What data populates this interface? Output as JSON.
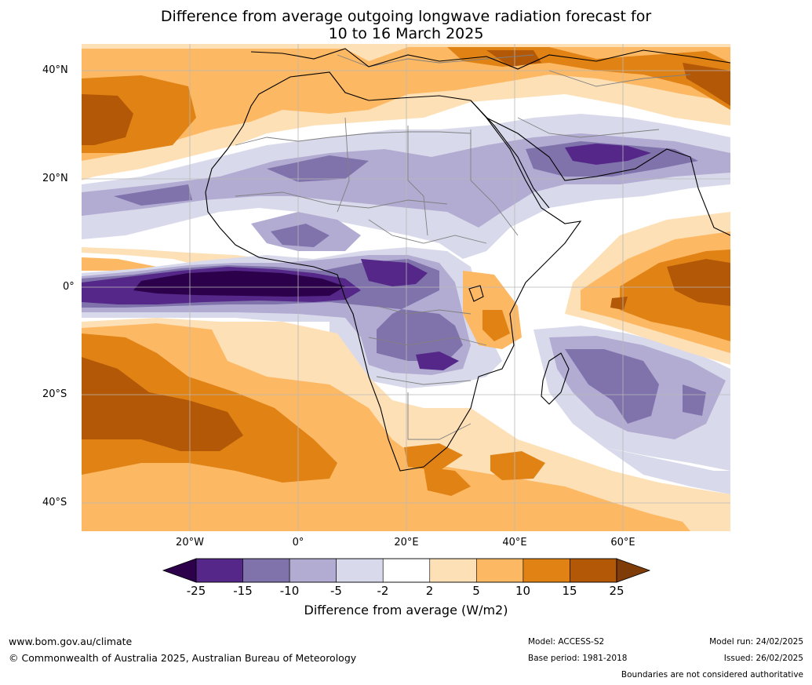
{
  "title": {
    "line1": "Difference from average outgoing longwave radiation forecast for",
    "line2": "10 to 16 March 2025"
  },
  "map": {
    "region": "Africa and surrounding oceans",
    "lat_ticks": [
      "40°N",
      "20°N",
      "0°",
      "20°S",
      "40°S"
    ],
    "lon_ticks": [
      "20°W",
      "0°",
      "20°E",
      "40°E",
      "60°E"
    ],
    "colors": {
      "strong_negative": "#2d004b",
      "negative_4": "#542788",
      "negative_3": "#8073ac",
      "negative_2": "#b2abd2",
      "negative_1": "#d8daeb",
      "neutral": "#ffffff",
      "positive_1": "#fee0b6",
      "positive_2": "#fdb863",
      "positive_3": "#e08214",
      "positive_4": "#b35806",
      "strong_positive": "#7f3b08"
    }
  },
  "colorbar": {
    "labels": [
      "-25",
      "-15",
      "-10",
      "-5",
      "-2",
      "2",
      "5",
      "10",
      "15",
      "25"
    ],
    "colors": [
      "#542788",
      "#8073ac",
      "#b2abd2",
      "#d8daeb",
      "#ffffff",
      "#fee0b6",
      "#fdb863",
      "#e08214",
      "#b35806"
    ],
    "low_extend_color": "#2d004b",
    "high_extend_color": "#7f3b08",
    "title": "Difference from average (W/m2)"
  },
  "footer": {
    "website": "www.bom.gov.au/climate",
    "copyright": "© Commonwealth of Australia 2025, Australian Bureau of Meteorology",
    "model": "Model: ACCESS-S2",
    "base_period": "Base period: 1981-2018",
    "model_run": "Model run: 24/02/2025",
    "issued": "Issued: 26/02/2025",
    "disclaimer": "Boundaries are not considered authoritative"
  }
}
